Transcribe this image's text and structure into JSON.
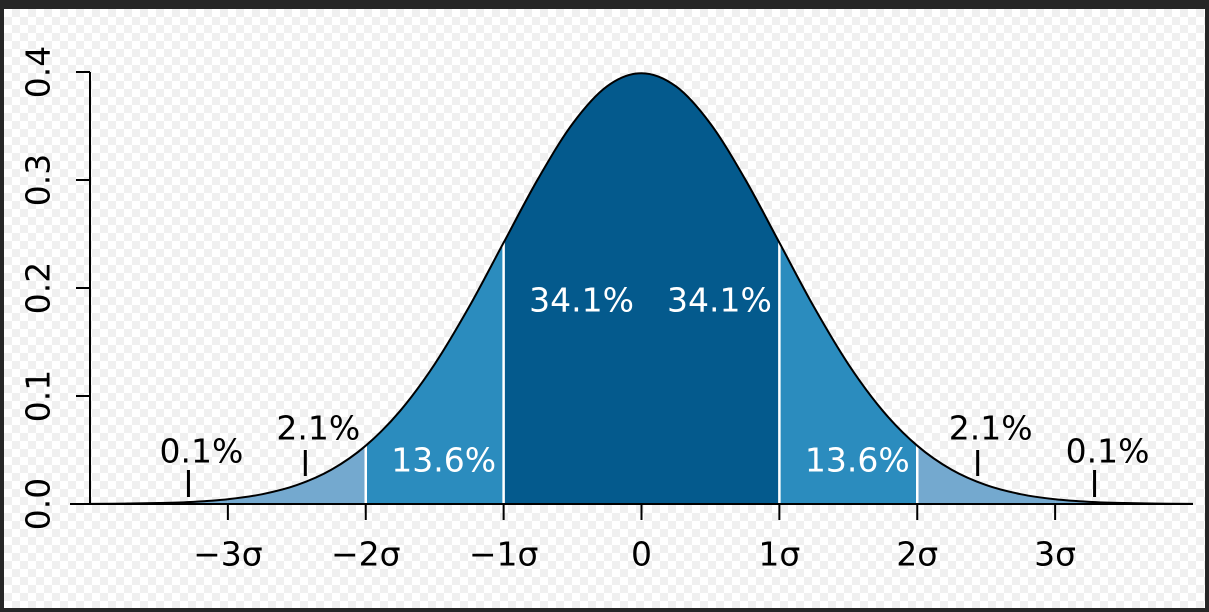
{
  "chart_data": {
    "type": "area",
    "xlim": [
      -4,
      4
    ],
    "ylim": [
      0,
      0.4
    ],
    "xticks": [
      {
        "value": -3,
        "label": "−3σ"
      },
      {
        "value": -2,
        "label": "−2σ"
      },
      {
        "value": -1,
        "label": "−1σ"
      },
      0,
      {
        "value": 1,
        "label": "1σ"
      },
      {
        "value": 2,
        "label": "2σ"
      },
      {
        "value": 3,
        "label": "3σ"
      }
    ],
    "yticks": [
      {
        "value": 0,
        "label": "0.0"
      },
      0.1,
      0.2,
      0.3,
      0.4
    ],
    "curve": {
      "color": "#000000",
      "x": [
        -4,
        -3.75,
        -3.5,
        -3.25,
        -3,
        -2.75,
        -2.5,
        -2.25,
        -2,
        -1.75,
        -1.5,
        -1.25,
        -1,
        -0.75,
        -0.5,
        -0.25,
        0,
        0.25,
        0.5,
        0.75,
        1,
        1.25,
        1.5,
        1.75,
        2,
        2.25,
        2.5,
        2.75,
        3,
        3.25,
        3.5,
        3.75,
        4
      ],
      "values": [
        0.0001,
        0.0004,
        0.0009,
        0.002,
        0.0044,
        0.0091,
        0.0175,
        0.0317,
        0.054,
        0.0863,
        0.1295,
        0.1826,
        0.242,
        0.3011,
        0.3521,
        0.3867,
        0.3989,
        0.3867,
        0.3521,
        0.3011,
        0.242,
        0.1826,
        0.1295,
        0.0863,
        0.054,
        0.0317,
        0.0175,
        0.0091,
        0.0044,
        0.002,
        0.0009,
        0.0004,
        0.0001
      ]
    },
    "bands": {
      "edges": [
        -4,
        -3,
        -2,
        -1,
        0,
        1,
        2,
        3,
        4
      ],
      "values": [
        0.1,
        2.1,
        13.6,
        34.1,
        34.1,
        13.6,
        2.1,
        0.1
      ],
      "value_labels": [
        "0.1%",
        "2.1%",
        "13.6%",
        "34.1%",
        "34.1%",
        "13.6%",
        "2.1%",
        "0.1%"
      ],
      "colors": [
        "#74a9cf",
        "#74a9cf",
        "#2b8cbe",
        "#045a8d",
        "#045a8d",
        "#2b8cbe",
        "#74a9cf",
        "#74a9cf"
      ]
    }
  }
}
